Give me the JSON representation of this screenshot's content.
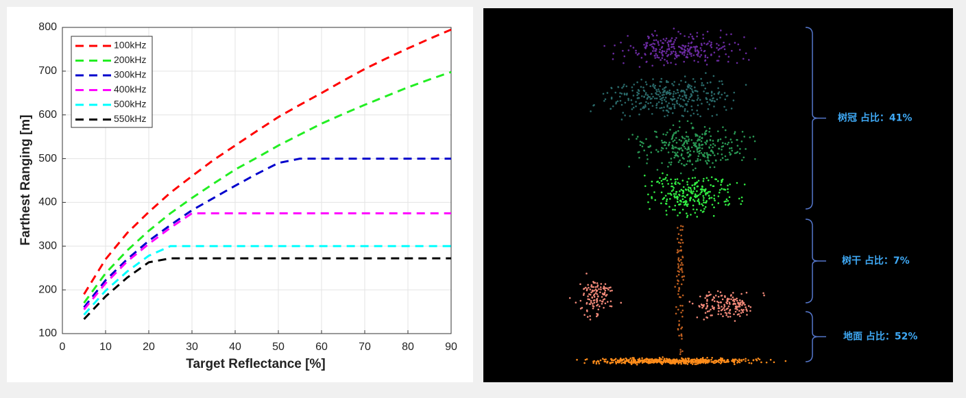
{
  "chart_data": {
    "type": "line",
    "xlabel": "Target Reflectance [%]",
    "ylabel": "Farthest Ranging [m]",
    "x": [
      5,
      10,
      15,
      20,
      25,
      30,
      35,
      40,
      45,
      50,
      55,
      60,
      65,
      70,
      75,
      80,
      85,
      90
    ],
    "series": [
      {
        "name": "100kHz",
        "color": "#ff0000",
        "values": [
          190,
          270,
          330,
          378,
          422,
          460,
          497,
          530,
          563,
          595,
          623,
          650,
          678,
          705,
          729,
          752,
          774,
          795
        ]
      },
      {
        "name": "200kHz",
        "color": "#22ee22",
        "values": [
          170,
          238,
          290,
          335,
          375,
          410,
          443,
          475,
          502,
          530,
          555,
          580,
          602,
          623,
          643,
          663,
          681,
          698
        ]
      },
      {
        "name": "300kHz",
        "color": "#0000cc",
        "values": [
          160,
          222,
          270,
          312,
          348,
          382,
          410,
          438,
          465,
          490,
          500,
          500,
          500,
          500,
          500,
          500,
          500,
          500
        ]
      },
      {
        "name": "400kHz",
        "color": "#ff00ff",
        "values": [
          155,
          215,
          265,
          305,
          342,
          375,
          375,
          375,
          375,
          375,
          375,
          375,
          375,
          375,
          375,
          375,
          375,
          375
        ]
      },
      {
        "name": "500kHz",
        "color": "#00ffff",
        "values": [
          143,
          198,
          242,
          278,
          300,
          300,
          300,
          300,
          300,
          300,
          300,
          300,
          300,
          300,
          300,
          300,
          300,
          300
        ]
      },
      {
        "name": "550kHz",
        "color": "#000000",
        "values": [
          133,
          185,
          228,
          263,
          272,
          272,
          272,
          272,
          272,
          272,
          272,
          272,
          272,
          272,
          272,
          272,
          272,
          272
        ]
      }
    ],
    "xlim": [
      0,
      90
    ],
    "xticks": [
      0,
      10,
      20,
      30,
      40,
      50,
      60,
      70,
      80,
      90
    ],
    "ylim": [
      100,
      800
    ],
    "yticks": [
      100,
      200,
      300,
      400,
      500,
      600,
      700,
      800
    ],
    "grid": true,
    "legend": "top-left",
    "line_style": "dashed"
  },
  "point_cloud": {
    "labels": [
      "树冠  占比：41%",
      "树干  占比：7%",
      "地面  占比：52%"
    ]
  }
}
